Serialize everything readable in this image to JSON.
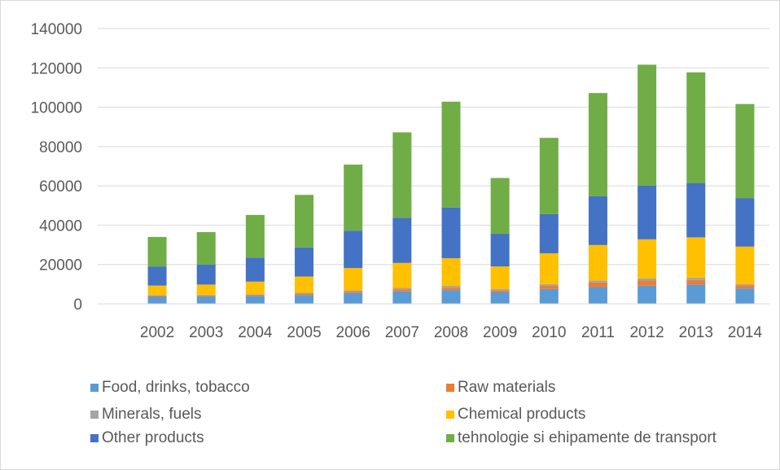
{
  "chart_data": {
    "type": "bar",
    "stacked": true,
    "categories": [
      "2002",
      "2003",
      "2004",
      "2005",
      "2006",
      "2007",
      "2008",
      "2009",
      "2010",
      "2011",
      "2012",
      "2013",
      "2014"
    ],
    "ylim": [
      0,
      140000
    ],
    "yticks": [
      0,
      20000,
      40000,
      60000,
      80000,
      100000,
      120000,
      140000
    ],
    "grid": true,
    "legend_position": "bottom",
    "series": [
      {
        "name": "Food, drinks, tobacco",
        "color": "#5b9bd5",
        "values": [
          3700,
          3800,
          4000,
          4500,
          5500,
          6300,
          7000,
          6000,
          7500,
          8500,
          9200,
          9800,
          7800
        ]
      },
      {
        "name": "Raw materials",
        "color": "#ed7d31",
        "values": [
          500,
          500,
          600,
          700,
          900,
          1100,
          1200,
          900,
          1600,
          2300,
          2600,
          2300,
          1500
        ]
      },
      {
        "name": "Minerals, fuels",
        "color": "#a5a5a5",
        "values": [
          300,
          300,
          300,
          400,
          500,
          700,
          900,
          700,
          900,
          1100,
          1200,
          1200,
          800
        ]
      },
      {
        "name": "Chemical products",
        "color": "#ffc000",
        "values": [
          4800,
          5200,
          6400,
          8300,
          11300,
          12700,
          14100,
          11400,
          15700,
          18000,
          19800,
          20500,
          19000
        ]
      },
      {
        "name": "Other products",
        "color": "#4472c4",
        "values": [
          9700,
          10200,
          12200,
          14800,
          19000,
          23000,
          25800,
          16600,
          19900,
          24800,
          27300,
          27500,
          24700
        ]
      },
      {
        "name": "tehnologie si ehipamente de transport",
        "color": "#70ad47",
        "values": [
          15000,
          16500,
          21700,
          26700,
          33600,
          43400,
          53800,
          28400,
          38800,
          52500,
          61500,
          56400,
          47800
        ]
      }
    ]
  }
}
